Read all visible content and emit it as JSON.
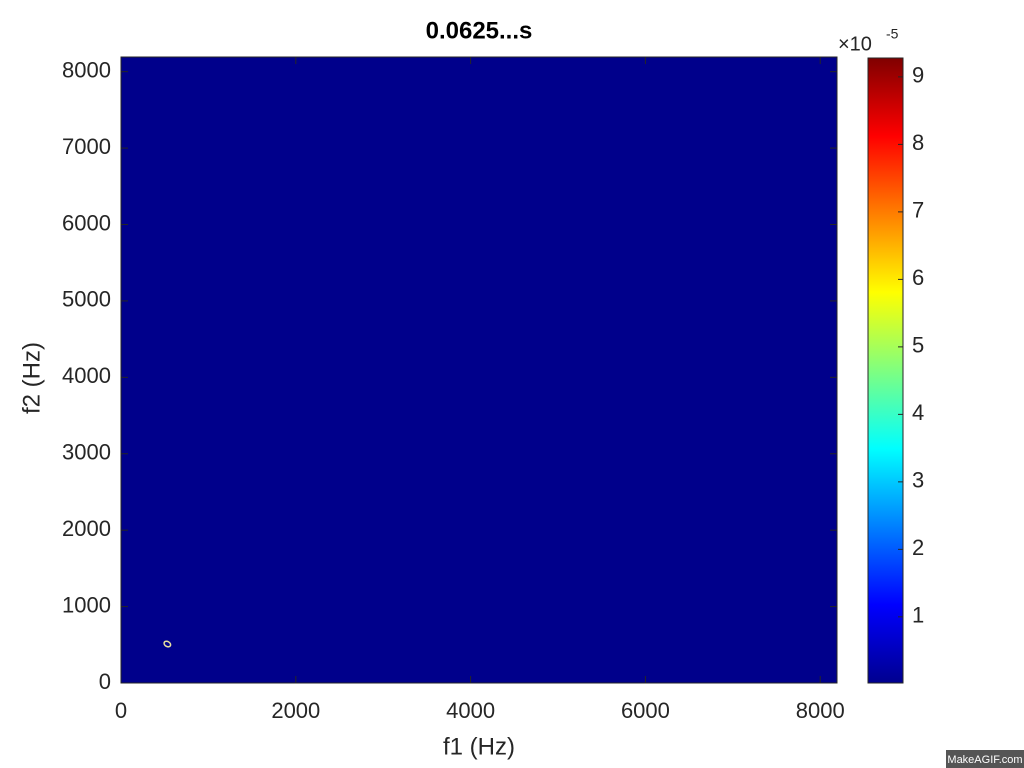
{
  "chart_data": {
    "type": "contour",
    "title": "0.0625...s",
    "x_label": "f1 (Hz)",
    "y_label": "f2 (Hz)",
    "xlim": [
      0,
      8192
    ],
    "ylim": [
      0,
      8192
    ],
    "xticks": [
      0,
      2000,
      4000,
      6000,
      8000
    ],
    "yticks": [
      0,
      1000,
      2000,
      3000,
      4000,
      5000,
      6000,
      7000,
      8000
    ],
    "background_color": "#00008b",
    "contours": [
      {
        "x": 530,
        "y": 510,
        "color": "#e8e0a0"
      }
    ],
    "colorbar": {
      "colormap": "jet",
      "lim": [
        0.02,
        9.28
      ],
      "ticks": [
        1,
        2,
        3,
        4,
        5,
        6,
        7,
        8,
        9
      ],
      "multiplier": "×10",
      "exponent": "-5"
    },
    "watermark": "MakeAGIF.com"
  }
}
